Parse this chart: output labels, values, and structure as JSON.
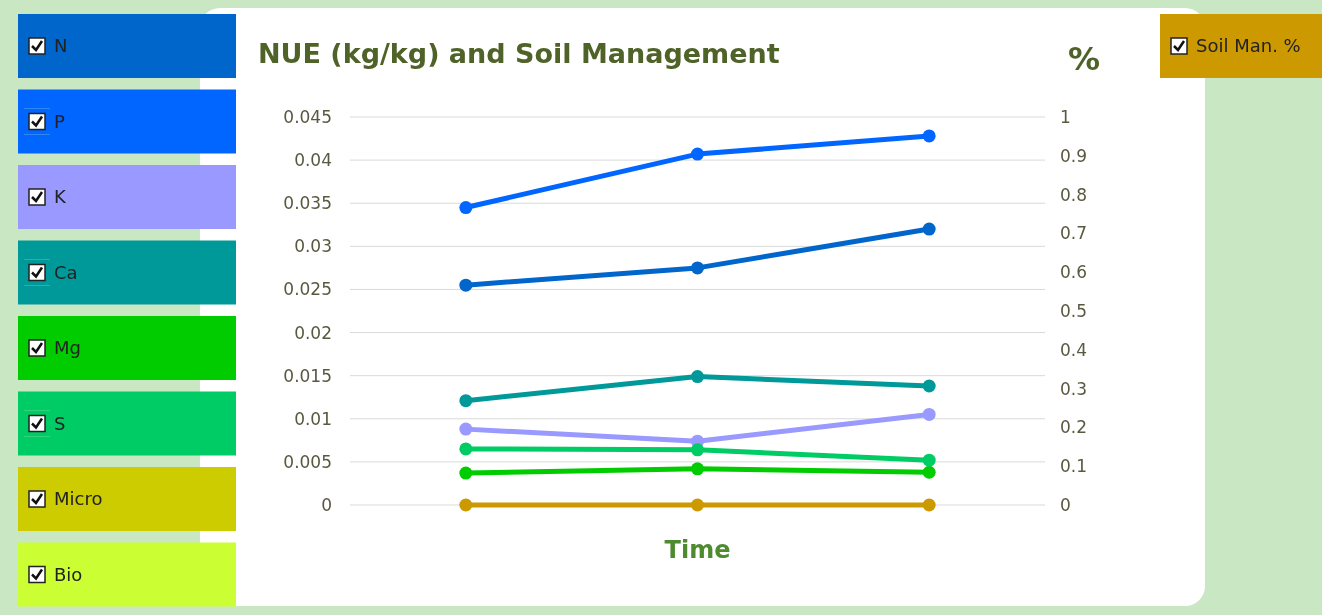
{
  "chart_data": {
    "type": "line",
    "title": "NUE (kg/kg) and Soil Management",
    "xlabel": "Time",
    "y2label": "%",
    "categories": [
      null,
      null,
      null
    ],
    "series": [
      {
        "name": "N",
        "color": "#0066cc",
        "values": [
          0.0255,
          0.0275,
          0.032
        ]
      },
      {
        "name": "P",
        "color": "#0066ff",
        "values": [
          0.0345,
          0.0407,
          0.0428
        ]
      },
      {
        "name": "K",
        "color": "#9999ff",
        "values": [
          0.0088,
          0.0074,
          0.0105
        ]
      },
      {
        "name": "Ca",
        "color": "#009999",
        "values": [
          0.0121,
          0.0149,
          0.0138
        ]
      },
      {
        "name": "Mg",
        "color": "#00cc00",
        "values": [
          0.0037,
          0.0042,
          0.0038
        ]
      },
      {
        "name": "S",
        "color": "#00cc66",
        "values": [
          0.0065,
          0.0064,
          0.0052
        ]
      },
      {
        "name": "Micro",
        "color": "#cccc00",
        "values": [
          null,
          null,
          null
        ]
      },
      {
        "name": "Bio",
        "color": "#ccff33",
        "values": [
          null,
          null,
          null
        ]
      },
      {
        "name": "Soil Man. %",
        "color": "#cc9900",
        "values": [
          0,
          0,
          0
        ],
        "axis": "y2"
      }
    ],
    "ylim": [
      0,
      0.045
    ],
    "yticks": [
      0,
      0.005,
      0.01,
      0.015,
      0.02,
      0.025,
      0.03,
      0.035,
      0.04,
      0.045
    ],
    "y2lim": [
      0,
      1
    ],
    "y2ticks": [
      0,
      0.1,
      0.2,
      0.3,
      0.4,
      0.5,
      0.6,
      0.7,
      0.8,
      0.9,
      1
    ],
    "grid": "y",
    "legend": "left",
    "marker": "circle",
    "line_style": "solid"
  }
}
